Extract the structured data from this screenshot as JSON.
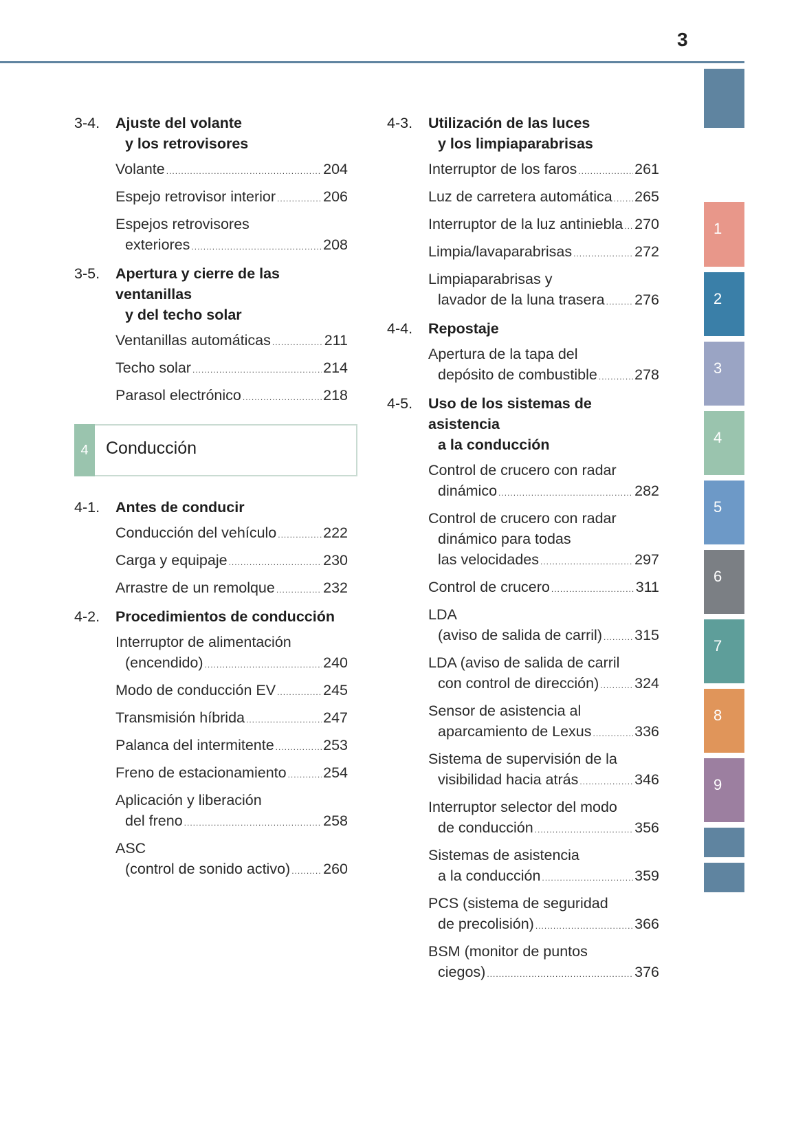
{
  "page_number": "3",
  "colors": {
    "header_rule": "#5f84a0",
    "chapter_badge": "#9ac4ae"
  },
  "chapter": {
    "number": "4",
    "title": "Conducción"
  },
  "left_column": [
    {
      "type": "section",
      "num": "3-4.",
      "lines": [
        "Ajuste del volante",
        "y los retrovisores"
      ]
    },
    {
      "type": "entry",
      "lines": [
        "Volante"
      ],
      "page": "204"
    },
    {
      "type": "entry",
      "lines": [
        "Espejo retrovisor interior"
      ],
      "page": "206"
    },
    {
      "type": "entry",
      "lines": [
        "Espejos retrovisores",
        "exteriores"
      ],
      "page": "208"
    },
    {
      "type": "section",
      "num": "3-5.",
      "lines": [
        "Apertura y cierre de las ventanillas",
        "y del techo solar"
      ]
    },
    {
      "type": "entry",
      "lines": [
        "Ventanillas automáticas"
      ],
      "page": "211"
    },
    {
      "type": "entry",
      "lines": [
        "Techo solar"
      ],
      "page": "214"
    },
    {
      "type": "entry",
      "lines": [
        "Parasol electrónico"
      ],
      "page": "218"
    },
    {
      "type": "chapter"
    },
    {
      "type": "section",
      "num": "4-1.",
      "lines": [
        "Antes de conducir"
      ]
    },
    {
      "type": "entry",
      "lines": [
        "Conducción del vehículo"
      ],
      "page": "222"
    },
    {
      "type": "entry",
      "lines": [
        "Carga y equipaje"
      ],
      "page": "230"
    },
    {
      "type": "entry",
      "lines": [
        "Arrastre de un remolque"
      ],
      "page": "232"
    },
    {
      "type": "section",
      "num": "4-2.",
      "lines": [
        "Procedimientos de conducción"
      ]
    },
    {
      "type": "entry",
      "lines": [
        "Interruptor de alimentación",
        "(encendido)"
      ],
      "page": "240"
    },
    {
      "type": "entry",
      "lines": [
        "Modo de conducción EV"
      ],
      "page": "245"
    },
    {
      "type": "entry",
      "lines": [
        "Transmisión híbrida"
      ],
      "page": "247"
    },
    {
      "type": "entry",
      "lines": [
        "Palanca del intermitente"
      ],
      "page": "253"
    },
    {
      "type": "entry",
      "lines": [
        "Freno de estacionamiento"
      ],
      "page": "254"
    },
    {
      "type": "entry",
      "lines": [
        "Aplicación y liberación",
        "del freno"
      ],
      "page": "258"
    },
    {
      "type": "entry",
      "lines": [
        "ASC",
        "(control de sonido activo)"
      ],
      "page": "260"
    }
  ],
  "right_column": [
    {
      "type": "section",
      "num": "4-3.",
      "lines": [
        "Utilización de las luces",
        "y los limpiaparabrisas"
      ]
    },
    {
      "type": "entry",
      "lines": [
        "Interruptor de los faros"
      ],
      "page": "261"
    },
    {
      "type": "entry",
      "lines": [
        "Luz de carretera automática"
      ],
      "page": "265"
    },
    {
      "type": "entry",
      "lines": [
        "Interruptor de la luz antiniebla"
      ],
      "page": "270"
    },
    {
      "type": "entry",
      "lines": [
        "Limpia/lavaparabrisas"
      ],
      "page": "272"
    },
    {
      "type": "entry",
      "lines": [
        "Limpiaparabrisas y",
        "lavador de la luna trasera"
      ],
      "page": "276"
    },
    {
      "type": "section",
      "num": "4-4.",
      "lines": [
        "Repostaje"
      ]
    },
    {
      "type": "entry",
      "lines": [
        "Apertura de la tapa del",
        "depósito de combustible"
      ],
      "page": "278"
    },
    {
      "type": "section",
      "num": "4-5.",
      "lines": [
        "Uso de los sistemas de asistencia",
        "a la conducción"
      ]
    },
    {
      "type": "entry",
      "lines": [
        "Control de crucero con radar",
        "dinámico"
      ],
      "page": "282"
    },
    {
      "type": "entry",
      "lines": [
        "Control de crucero con radar",
        "dinámico para todas",
        "las velocidades"
      ],
      "page": "297"
    },
    {
      "type": "entry",
      "lines": [
        "Control de crucero"
      ],
      "page": "311"
    },
    {
      "type": "entry",
      "lines": [
        "LDA",
        "(aviso de salida de carril)"
      ],
      "page": "315"
    },
    {
      "type": "entry",
      "lines": [
        "LDA (aviso de salida de carril",
        "con control de dirección)"
      ],
      "page": "324"
    },
    {
      "type": "entry",
      "lines": [
        "Sensor de asistencia al",
        "aparcamiento de Lexus"
      ],
      "page": "336"
    },
    {
      "type": "entry",
      "lines": [
        "Sistema de supervisión de la",
        "visibilidad hacia atrás"
      ],
      "page": "346"
    },
    {
      "type": "entry",
      "lines": [
        "Interruptor selector del modo",
        "de conducción"
      ],
      "page": "356"
    },
    {
      "type": "entry",
      "lines": [
        "Sistemas de asistencia",
        "a la conducción"
      ],
      "page": "359"
    },
    {
      "type": "entry",
      "lines": [
        "PCS (sistema de seguridad",
        "de precolisión)"
      ],
      "page": "366"
    },
    {
      "type": "entry",
      "lines": [
        "BSM (monitor de puntos",
        "ciegos)"
      ],
      "page": "376"
    }
  ],
  "side_tabs": [
    {
      "label": "",
      "color": "#5f84a0"
    },
    {
      "label": "1",
      "color": "#e8978a"
    },
    {
      "label": "2",
      "color": "#3a7fa8"
    },
    {
      "label": "3",
      "color": "#9aa4c4"
    },
    {
      "label": "4",
      "color": "#9ac4ae"
    },
    {
      "label": "5",
      "color": "#6d99c7"
    },
    {
      "label": "6",
      "color": "#7b7f84"
    },
    {
      "label": "7",
      "color": "#5e9e9a"
    },
    {
      "label": "8",
      "color": "#e0955a"
    },
    {
      "label": "9",
      "color": "#9c7fa0"
    },
    {
      "label": "",
      "color": "#5f84a0"
    },
    {
      "label": "",
      "color": "#5f84a0"
    }
  ]
}
